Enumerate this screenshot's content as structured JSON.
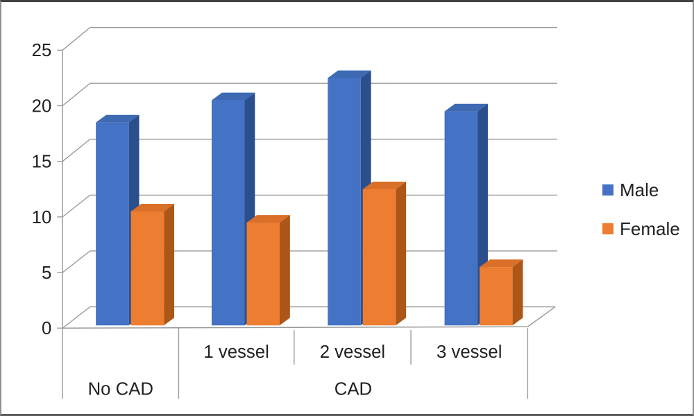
{
  "chart": {
    "chart_data": {
      "type": "bar",
      "style": "3d-clustered-column",
      "categories": [
        "No CAD",
        "1 vessel",
        "2 vessel",
        "3 vessel"
      ],
      "sub_axis_labels": [
        "",
        "1 vessel",
        "2 vessel",
        "3 vessel"
      ],
      "group_axis": [
        {
          "label": "No CAD",
          "cols": [
            0
          ]
        },
        {
          "label": "CAD",
          "cols": [
            1,
            2,
            3
          ]
        }
      ],
      "series": [
        {
          "name": "Male",
          "values": [
            18,
            20,
            22,
            19
          ],
          "color": "#4472C4",
          "color_top": "#3E69B3",
          "color_side": "#2B4E8D"
        },
        {
          "name": "Female",
          "values": [
            10,
            9,
            12,
            5
          ],
          "color": "#ED7D31",
          "color_top": "#D96F28",
          "color_side": "#AC5617"
        }
      ],
      "title": "",
      "xlabel": "",
      "ylabel": "",
      "ylim": [
        0,
        25
      ],
      "y_ticks": [
        0,
        5,
        10,
        15,
        20,
        25
      ],
      "grid": true,
      "legend_position": "right"
    },
    "colors": {
      "grid_line": "#9a9a9a",
      "axis_line": "#9a9a9a",
      "text": "#212121"
    }
  }
}
